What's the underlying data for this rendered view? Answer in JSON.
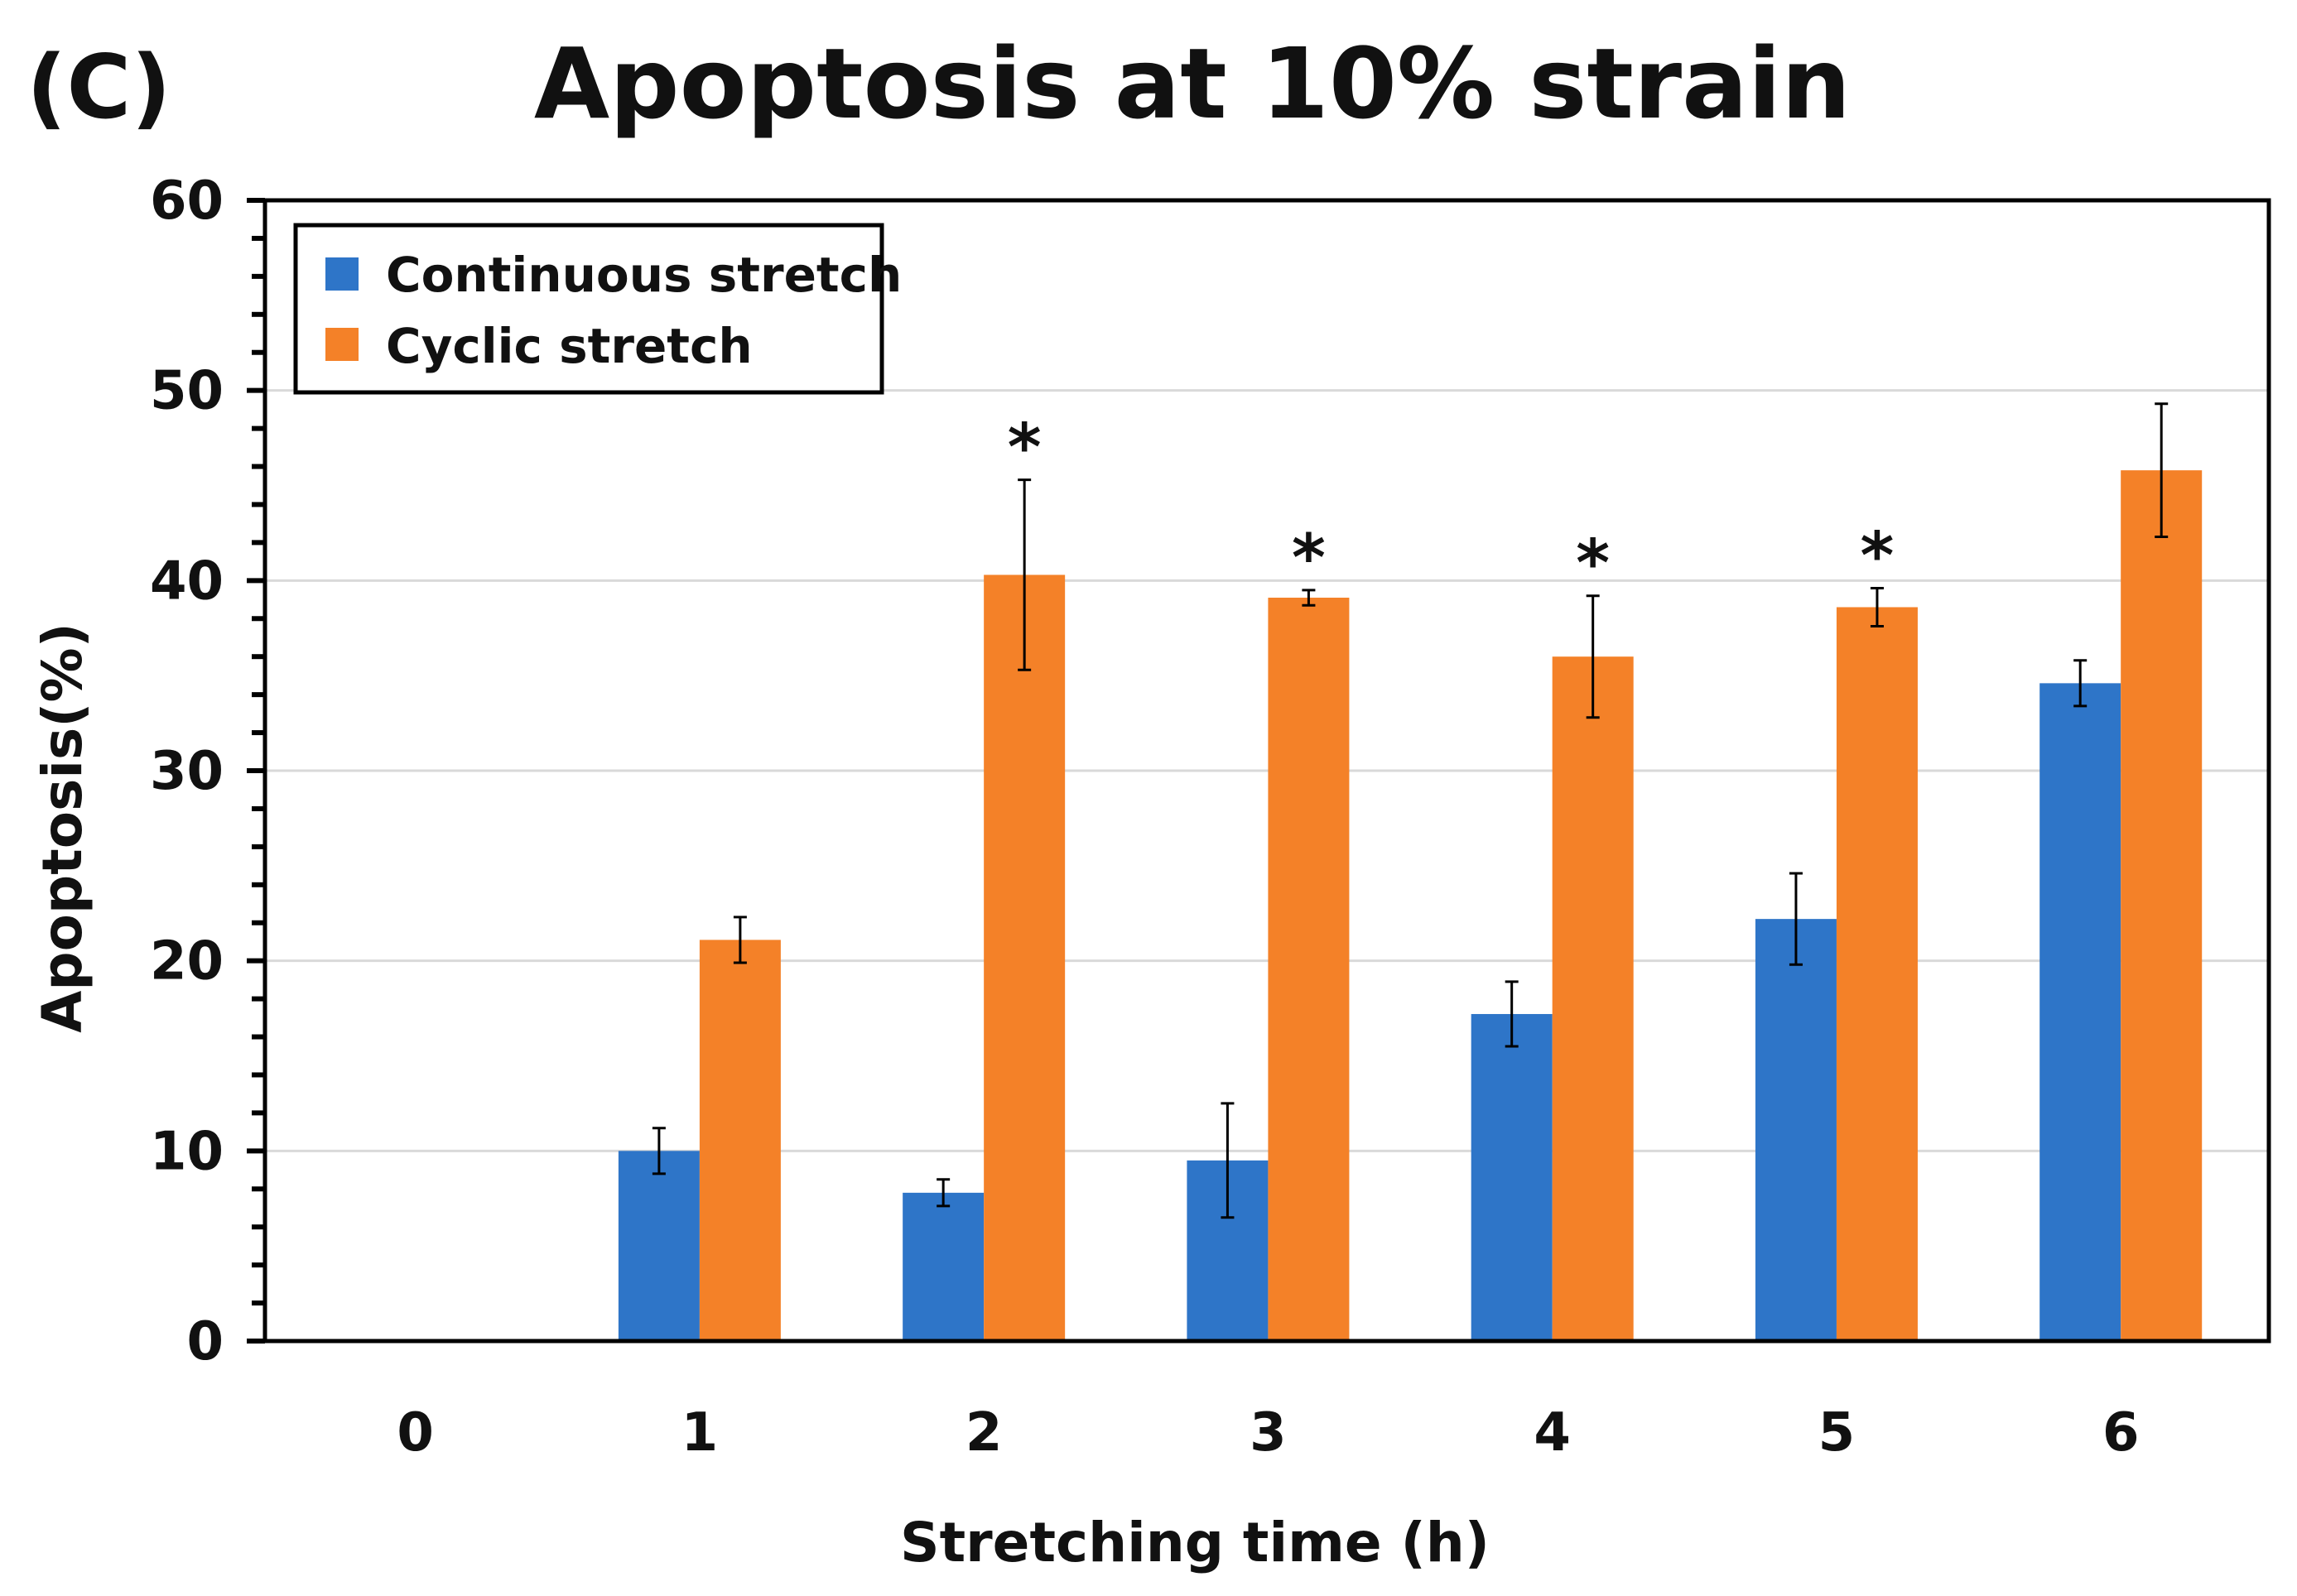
{
  "panel_label": "(C)",
  "chart_data": {
    "type": "bar",
    "title": "Apoptosis at 10% strain",
    "xlabel": "Stretching time (h)",
    "ylabel": "Apoptosis(%)",
    "categories": [
      "0",
      "1",
      "2",
      "3",
      "4",
      "5",
      "6"
    ],
    "ylim": [
      0,
      60
    ],
    "yticks": [
      0,
      10,
      20,
      30,
      40,
      50,
      60
    ],
    "grid": true,
    "legend": "top-left",
    "series": [
      {
        "name": "Continuous stretch",
        "color": "#2e75c8",
        "values": [
          0,
          10.0,
          7.8,
          9.5,
          17.2,
          22.2,
          34.6
        ],
        "errors": [
          0,
          1.2,
          0.7,
          3.0,
          1.7,
          2.4,
          1.2
        ]
      },
      {
        "name": "Cyclic stretch",
        "color": "#f48128",
        "values": [
          0,
          21.1,
          40.3,
          39.1,
          36.0,
          38.6,
          45.8
        ],
        "errors": [
          0,
          1.2,
          5.0,
          0.4,
          3.2,
          1.0,
          3.5
        ]
      }
    ],
    "significance": [
      {
        "category": "2",
        "label": "*"
      },
      {
        "category": "3",
        "label": "*"
      },
      {
        "category": "4",
        "label": "*"
      },
      {
        "category": "5",
        "label": "*"
      }
    ]
  }
}
